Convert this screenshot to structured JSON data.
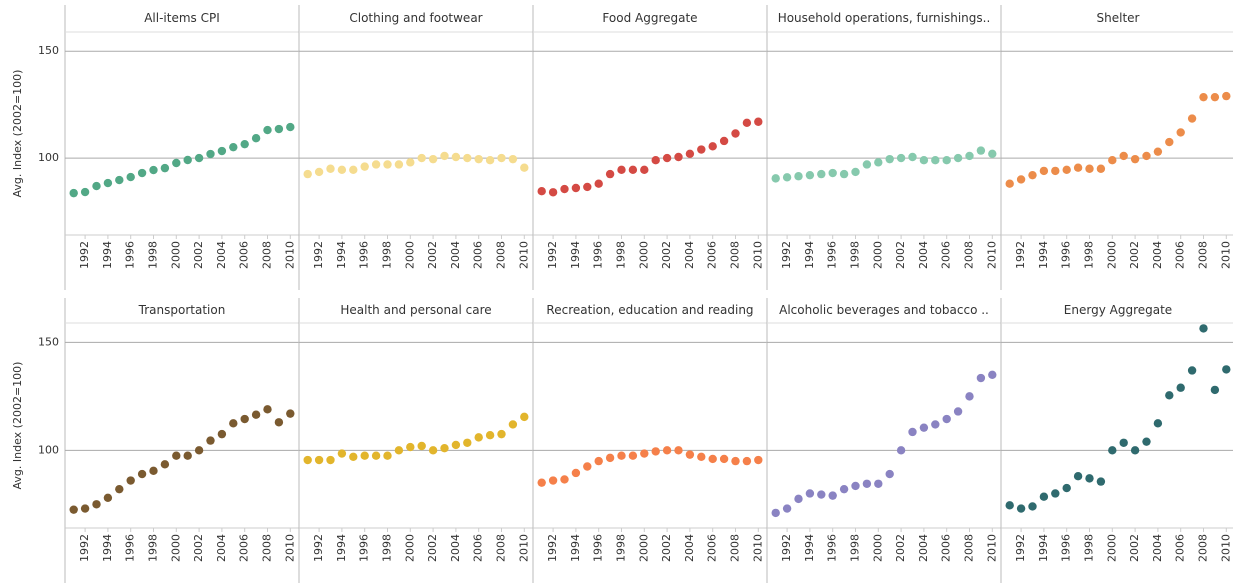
{
  "chart_data": [
    {
      "type": "scatter",
      "title": "All-items CPI",
      "y_label": "Avg. Index (2002=100)",
      "color": "#52a886",
      "x": [
        1991,
        1992,
        1993,
        1994,
        1995,
        1996,
        1997,
        1998,
        1999,
        2000,
        2001,
        2002,
        2003,
        2004,
        2005,
        2006,
        2007,
        2008,
        2009,
        2010
      ],
      "values": [
        83.6,
        84.1,
        86.9,
        88.3,
        89.7,
        91.1,
        93.0,
        94.4,
        95.3,
        97.7,
        99.1,
        100,
        101.9,
        103.3,
        105.1,
        106.5,
        109.3,
        113.1,
        113.6,
        114.5
      ],
      "xlim": [
        1990.5,
        2010.5
      ],
      "xticks": [
        1992,
        1994,
        1996,
        1998,
        2000,
        2002,
        2004,
        2006,
        2008,
        2010
      ],
      "ylim": [
        64,
        159
      ],
      "yticks": [
        100,
        150
      ],
      "grid": true
    },
    {
      "type": "scatter",
      "title": "Clothing and footwear",
      "color": "#f5dc8f",
      "x": [
        1991,
        1992,
        1993,
        1994,
        1995,
        1996,
        1997,
        1998,
        1999,
        2000,
        2001,
        2002,
        2003,
        2004,
        2005,
        2006,
        2007,
        2008,
        2009,
        2010
      ],
      "values": [
        92.5,
        93.5,
        95,
        94.5,
        94.5,
        96,
        97,
        97,
        97,
        98,
        100,
        99.5,
        101,
        100.5,
        100,
        99.5,
        99,
        100,
        99.5,
        95.5
      ],
      "xlim": [
        1990.5,
        2010.5
      ],
      "xticks": [
        1992,
        1994,
        1996,
        1998,
        2000,
        2002,
        2004,
        2006,
        2008,
        2010
      ],
      "ylim": [
        64,
        159
      ],
      "yticks": [
        100,
        150
      ],
      "grid": true
    },
    {
      "type": "scatter",
      "title": "Food Aggregate",
      "color": "#d44a44",
      "x": [
        1991,
        1992,
        1993,
        1994,
        1995,
        1996,
        1997,
        1998,
        1999,
        2000,
        2001,
        2002,
        2003,
        2004,
        2005,
        2006,
        2007,
        2008,
        2009,
        2010
      ],
      "values": [
        84.5,
        84,
        85.5,
        86,
        86.5,
        88,
        92.5,
        94.5,
        94.5,
        94.5,
        99,
        100,
        100.5,
        102,
        104,
        105.5,
        108,
        111.5,
        116.5,
        117
      ],
      "xlim": [
        1990.5,
        2010.5
      ],
      "xticks": [
        1992,
        1994,
        1996,
        1998,
        2000,
        2002,
        2004,
        2006,
        2008,
        2010
      ],
      "ylim": [
        64,
        159
      ],
      "yticks": [
        100,
        150
      ],
      "grid": true
    },
    {
      "type": "scatter",
      "title": "Household operations, furnishings..",
      "color": "#86c9ad",
      "x": [
        1991,
        1992,
        1993,
        1994,
        1995,
        1996,
        1997,
        1998,
        1999,
        2000,
        2001,
        2002,
        2003,
        2004,
        2005,
        2006,
        2007,
        2008,
        2009,
        2010
      ],
      "values": [
        90.5,
        91,
        91.5,
        92,
        92.5,
        93,
        92.5,
        93.5,
        97,
        98,
        99.5,
        100,
        100.5,
        99,
        99,
        99,
        100,
        101,
        103.5,
        102
      ],
      "xlim": [
        1990.5,
        2010.5
      ],
      "xticks": [
        1992,
        1994,
        1996,
        1998,
        2000,
        2002,
        2004,
        2006,
        2008,
        2010
      ],
      "ylim": [
        64,
        159
      ],
      "yticks": [
        100,
        150
      ],
      "grid": true
    },
    {
      "type": "scatter",
      "title": "Shelter",
      "color": "#ec8c4a",
      "x": [
        1991,
        1992,
        1993,
        1994,
        1995,
        1996,
        1997,
        1998,
        1999,
        2000,
        2001,
        2002,
        2003,
        2004,
        2005,
        2006,
        2007,
        2008,
        2009,
        2010
      ],
      "values": [
        88,
        90,
        92,
        94,
        94,
        94.5,
        95.5,
        95,
        95,
        99,
        101,
        99.5,
        101,
        103,
        107.5,
        112,
        118.5,
        128.5,
        128.5,
        129
      ],
      "xlim": [
        1990.5,
        2010.5
      ],
      "xticks": [
        1992,
        1994,
        1996,
        1998,
        2000,
        2002,
        2004,
        2006,
        2008,
        2010
      ],
      "ylim": [
        64,
        159
      ],
      "yticks": [
        100,
        150
      ],
      "grid": true
    },
    {
      "type": "scatter",
      "title": "Transportation",
      "y_label": "Avg. Index (2002=100)",
      "color": "#7a5a30",
      "x": [
        1991,
        1992,
        1993,
        1994,
        1995,
        1996,
        1997,
        1998,
        1999,
        2000,
        2001,
        2002,
        2003,
        2004,
        2005,
        2006,
        2007,
        2008,
        2009,
        2010
      ],
      "values": [
        72.5,
        73,
        75,
        78,
        82,
        86,
        89,
        90.5,
        93.5,
        97.5,
        97.5,
        100,
        104.5,
        107.5,
        112.5,
        114.5,
        116.5,
        119,
        113,
        117
      ],
      "xlim": [
        1990.5,
        2010.5
      ],
      "xticks": [
        1992,
        1994,
        1996,
        1998,
        2000,
        2002,
        2004,
        2006,
        2008,
        2010
      ],
      "ylim": [
        64,
        159
      ],
      "yticks": [
        100,
        150
      ],
      "grid": true
    },
    {
      "type": "scatter",
      "title": "Health and personal care",
      "color": "#e2b52c",
      "x": [
        1991,
        1992,
        1993,
        1994,
        1995,
        1996,
        1997,
        1998,
        1999,
        2000,
        2001,
        2002,
        2003,
        2004,
        2005,
        2006,
        2007,
        2008,
        2009,
        2010
      ],
      "values": [
        95.5,
        95.5,
        95.5,
        98.5,
        97,
        97.5,
        97.5,
        97.5,
        100,
        101.5,
        102,
        100,
        101,
        102.5,
        103.5,
        106,
        107,
        107.5,
        112,
        115.5
      ],
      "xlim": [
        1990.5,
        2010.5
      ],
      "xticks": [
        1992,
        1994,
        1996,
        1998,
        2000,
        2002,
        2004,
        2006,
        2008,
        2010
      ],
      "ylim": [
        64,
        159
      ],
      "yticks": [
        100,
        150
      ],
      "grid": true
    },
    {
      "type": "scatter",
      "title": "Recreation, education and reading",
      "color": "#f5804a",
      "x": [
        1991,
        1992,
        1993,
        1994,
        1995,
        1996,
        1997,
        1998,
        1999,
        2000,
        2001,
        2002,
        2003,
        2004,
        2005,
        2006,
        2007,
        2008,
        2009,
        2010
      ],
      "values": [
        85,
        86,
        86.5,
        89.5,
        92.5,
        95,
        96.5,
        97.5,
        97.5,
        98.5,
        99.5,
        100,
        100,
        98,
        97,
        96,
        96,
        95,
        95,
        95.5
      ],
      "xlim": [
        1990.5,
        2010.5
      ],
      "xticks": [
        1992,
        1994,
        1996,
        1998,
        2000,
        2002,
        2004,
        2006,
        2008,
        2010
      ],
      "ylim": [
        64,
        159
      ],
      "yticks": [
        100,
        150
      ],
      "grid": true
    },
    {
      "type": "scatter",
      "title": "Alcoholic beverages and tobacco ..",
      "color": "#8a83c2",
      "x": [
        1991,
        1992,
        1993,
        1994,
        1995,
        1996,
        1997,
        1998,
        1999,
        2000,
        2001,
        2002,
        2003,
        2004,
        2005,
        2006,
        2007,
        2008,
        2009,
        2010
      ],
      "values": [
        71,
        73,
        77.5,
        80,
        79.5,
        79,
        82,
        83.5,
        84.5,
        84.5,
        89,
        100,
        108.5,
        110.5,
        112,
        114.5,
        118,
        125,
        133.5,
        135
      ],
      "xlim": [
        1990.5,
        2010.5
      ],
      "xticks": [
        1992,
        1994,
        1996,
        1998,
        2000,
        2002,
        2004,
        2006,
        2008,
        2010
      ],
      "ylim": [
        64,
        159
      ],
      "yticks": [
        100,
        150
      ],
      "grid": true
    },
    {
      "type": "scatter",
      "title": "Energy Aggregate",
      "color": "#2f6a6e",
      "x": [
        1991,
        1992,
        1993,
        1994,
        1995,
        1996,
        1997,
        1998,
        1999,
        2000,
        2001,
        2002,
        2003,
        2004,
        2005,
        2006,
        2007,
        2008,
        2009,
        2010
      ],
      "values": [
        74.5,
        73,
        74,
        78.5,
        80,
        82.5,
        88,
        87,
        85.5,
        100,
        103.5,
        100,
        104,
        112.5,
        125.5,
        129,
        137,
        156.5,
        128,
        137.5
      ],
      "xlim": [
        1990.5,
        2010.5
      ],
      "xticks": [
        1992,
        1994,
        1996,
        1998,
        2000,
        2002,
        2004,
        2006,
        2008,
        2010
      ],
      "ylim": [
        64,
        159
      ],
      "yticks": [
        100,
        150
      ],
      "grid": true
    }
  ]
}
